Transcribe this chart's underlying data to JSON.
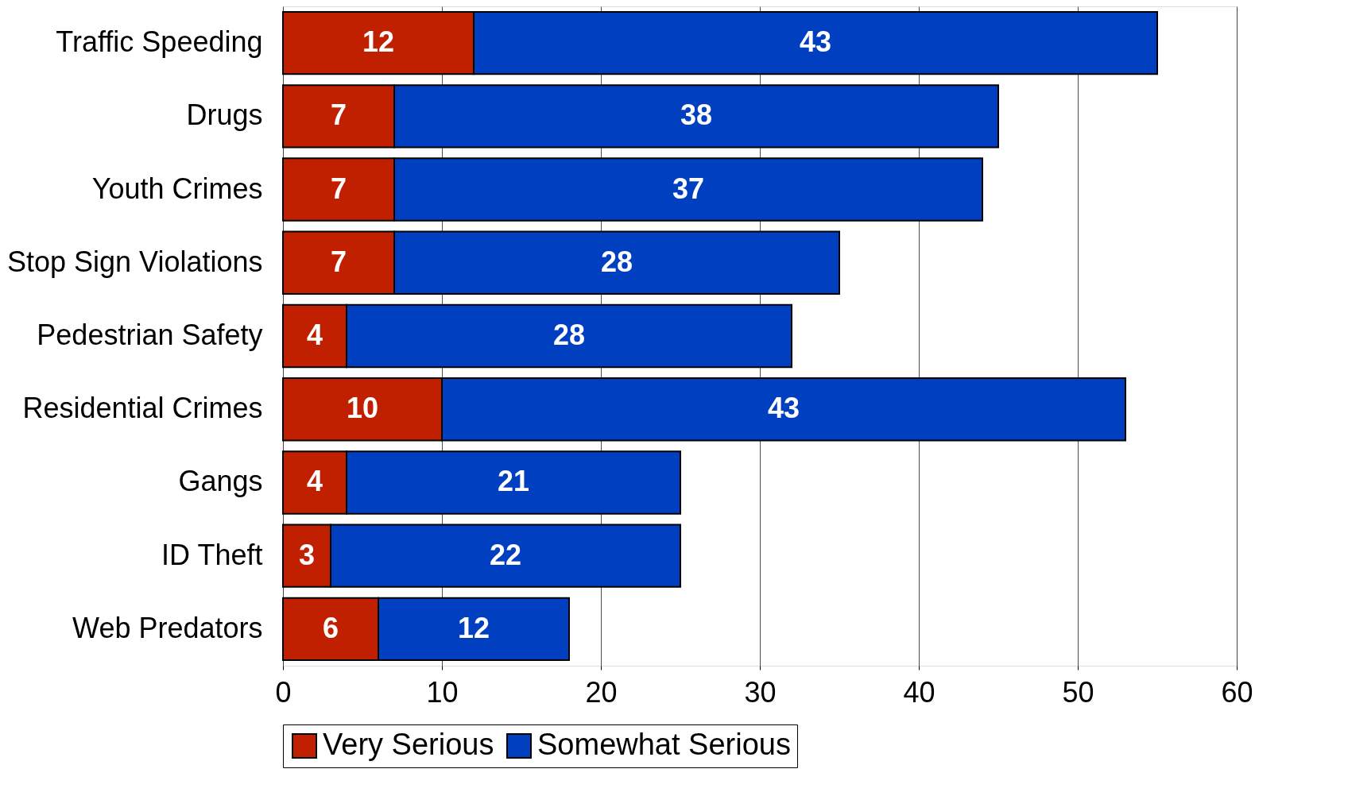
{
  "chart_data": {
    "type": "bar",
    "orientation": "horizontal",
    "stacked": true,
    "categories": [
      "Traffic Speeding",
      "Drugs",
      "Youth Crimes",
      "Stop Sign Violations",
      "Pedestrian Safety",
      "Residential Crimes",
      "Gangs",
      "ID Theft",
      "Web Predators"
    ],
    "series": [
      {
        "name": "Very Serious",
        "color": "#c02000",
        "values": [
          12,
          7,
          7,
          7,
          4,
          10,
          4,
          3,
          6
        ]
      },
      {
        "name": "Somewhat Serious",
        "color": "#0040c0",
        "values": [
          43,
          38,
          37,
          28,
          28,
          43,
          21,
          22,
          12
        ]
      }
    ],
    "xlim": [
      0,
      60
    ],
    "xticks": [
      0,
      10,
      20,
      30,
      40,
      50,
      60
    ],
    "grid": "x",
    "legend": "bottom",
    "data_labels": true
  }
}
